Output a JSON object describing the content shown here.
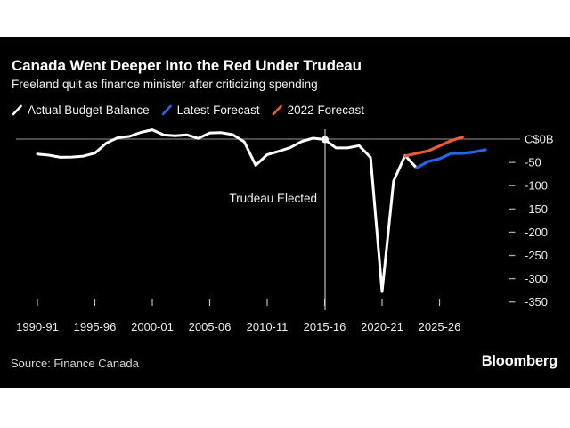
{
  "header": {
    "title": "Canada Went Deeper Into the Red Under Trudeau",
    "subtitle": "Freeland quit as finance minister after criticizing spending"
  },
  "legend": {
    "items": [
      {
        "label": "Actual Budget Balance",
        "color": "#ffffff"
      },
      {
        "label": "Latest Forecast",
        "color": "#2465ec"
      },
      {
        "label": "2022 Forecast",
        "color": "#e85c39"
      }
    ]
  },
  "footer": {
    "source": "Source: Finance Canada",
    "brand": "Bloomberg"
  },
  "chart_data": {
    "type": "line",
    "title": "Canada Went Deeper Into the Red Under Trudeau",
    "subtitle": "Freeland quit as finance minister after criticizing spending",
    "unit": "C$ billions",
    "x_axis": {
      "tick_years": [
        1990,
        1995,
        2000,
        2005,
        2010,
        2015,
        2020,
        2025
      ],
      "tick_labels": [
        "1990-91",
        "1995-96",
        "2000-01",
        "2005-06",
        "2010-11",
        "2015-16",
        "2020-21",
        "2025-26"
      ]
    },
    "y_axis": {
      "ticks": [
        0,
        -50,
        -100,
        -150,
        -200,
        -250,
        -300,
        -350
      ],
      "tick_labels": [
        "C$0B",
        "-50",
        "-100",
        "-150",
        "-200",
        "-250",
        "-300",
        "-350"
      ],
      "range": [
        -350,
        25
      ],
      "zero_line": true,
      "grid": false
    },
    "annotation": {
      "text": "Trudeau Elected",
      "year": 2015,
      "marker_value": -1
    },
    "legend_position": "top",
    "series": [
      {
        "name": "Actual Budget Balance",
        "color": "#ffffff",
        "start_year": 1990,
        "values": [
          -32,
          -34.4,
          -39,
          -38.5,
          -36.6,
          -30,
          -8.7,
          3,
          5.8,
          14.3,
          19.9,
          8.9,
          7,
          9.1,
          1.5,
          13.2,
          13.8,
          9.6,
          -5.8,
          -56.4,
          -33.4,
          -26.3,
          -18.4,
          -5.2,
          1.9,
          -1,
          -19,
          -19,
          -14,
          -39.4,
          -327.7,
          -90.2,
          -35.3,
          -61.9
        ]
      },
      {
        "name": "Latest Forecast",
        "color": "#2465ec",
        "start_year": 2023,
        "values": [
          -61.9,
          -48.3,
          -42.2,
          -31,
          -30.4,
          -27.8,
          -23
        ]
      },
      {
        "name": "2022 Forecast",
        "color": "#e85c39",
        "start_year": 2022,
        "values": [
          -36.4,
          -30.6,
          -25.4,
          -14.5,
          -3.4,
          4.5
        ]
      }
    ]
  }
}
